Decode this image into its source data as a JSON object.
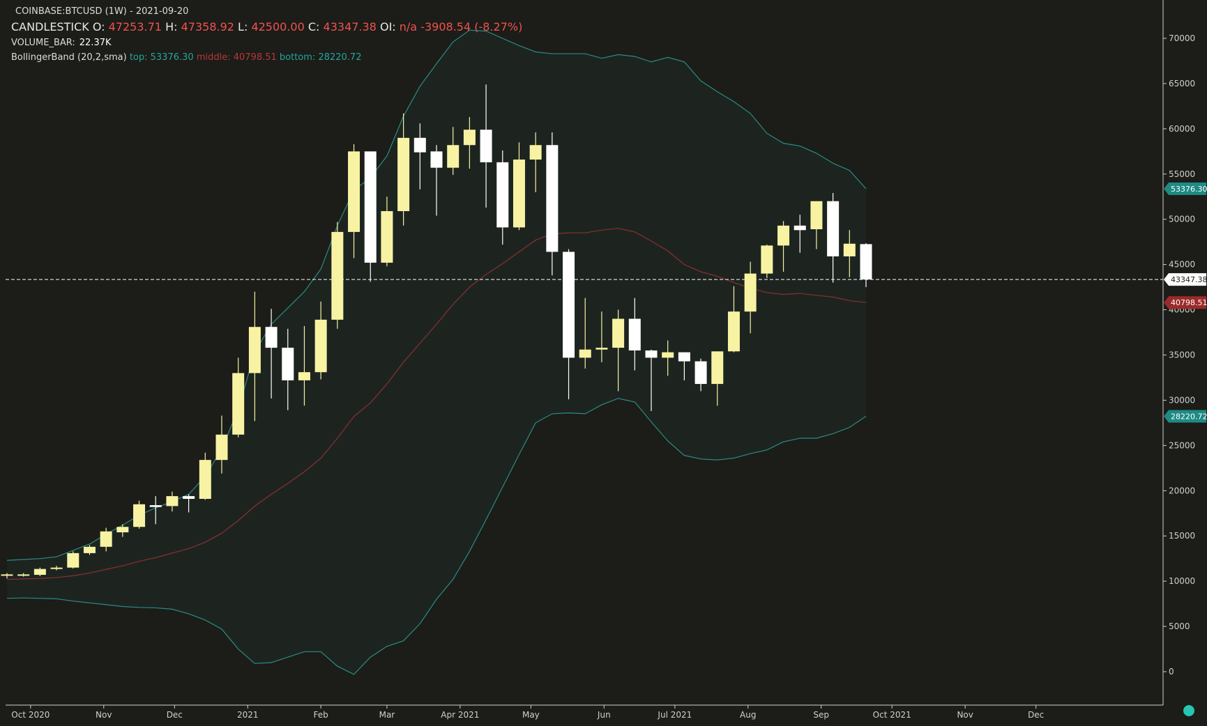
{
  "header": {
    "symbol_line": "COINBASE:BTCUSD (1W) - 2021-09-20",
    "series_label": "CANDLESTICK",
    "o_label": "O:",
    "o_value": "47253.71",
    "h_label": "H:",
    "h_value": "47358.92",
    "l_label": "L:",
    "l_value": "42500.00",
    "c_label": "C:",
    "c_value": "43347.38",
    "oi_label": "OI:",
    "oi_value": "n/a",
    "change_value": "-3908.54",
    "change_pct": "(-8.27%)",
    "volume_label": "VOLUME_BAR:",
    "volume_value": "22.37K",
    "bb_label": "BollingerBand (20,2,sma)",
    "bb_top": "top: 53376.30",
    "bb_middle": "middle: 40798.51",
    "bb_bottom": "bottom: 28220.72"
  },
  "colors": {
    "background": "#1c1c18",
    "up_candle": "#f7f3a3",
    "down_candle": "#ffffff",
    "band_line": "#2a8c86",
    "middle_line": "#8b2f2f",
    "band_fill": "#1d2420",
    "axis_text": "#d0d0d0",
    "crosshair": "#ffffff"
  },
  "chart_data": {
    "type": "candlestick",
    "ylim": [
      -3000,
      75000
    ],
    "y_ticks": [
      0,
      5000,
      10000,
      15000,
      20000,
      25000,
      30000,
      35000,
      40000,
      45000,
      50000,
      55000,
      60000,
      65000,
      70000
    ],
    "x_ticks": [
      "Oct 2020",
      "Nov",
      "Dec",
      "2021",
      "Feb",
      "Mar",
      "Apr 2021",
      "May",
      "Jun",
      "Jul 2021",
      "Aug",
      "Sep",
      "Oct 2021",
      "Nov",
      "Dec"
    ],
    "x_tick_dates": [
      "2020-10-01",
      "2020-11-01",
      "2020-12-01",
      "2021-01-01",
      "2021-02-01",
      "2021-03-01",
      "2021-04-01",
      "2021-05-01",
      "2021-06-01",
      "2021-07-01",
      "2021-08-01",
      "2021-09-01",
      "2021-10-01",
      "2021-11-01",
      "2021-12-01"
    ],
    "x_range_dates": [
      "2020-09-21",
      "2022-01-02"
    ],
    "price_labels": {
      "top": "53376.30",
      "last": "43347.38",
      "middle": "40798.51",
      "bottom": "28220.72"
    },
    "last_price": 43347.38,
    "candles": [
      {
        "date": "2020-09-21",
        "o": 10700,
        "h": 10900,
        "l": 10300,
        "c": 10750
      },
      {
        "date": "2020-09-28",
        "o": 10650,
        "h": 10900,
        "l": 10500,
        "c": 10750
      },
      {
        "date": "2020-10-05",
        "o": 10700,
        "h": 11500,
        "l": 10550,
        "c": 11350
      },
      {
        "date": "2020-10-12",
        "o": 11350,
        "h": 11700,
        "l": 11200,
        "c": 11500
      },
      {
        "date": "2020-10-19",
        "o": 11500,
        "h": 13300,
        "l": 11400,
        "c": 13100
      },
      {
        "date": "2020-10-26",
        "o": 13100,
        "h": 14000,
        "l": 12900,
        "c": 13800
      },
      {
        "date": "2020-11-02",
        "o": 13800,
        "h": 15900,
        "l": 13300,
        "c": 15500
      },
      {
        "date": "2020-11-09",
        "o": 15400,
        "h": 16300,
        "l": 14900,
        "c": 16000
      },
      {
        "date": "2020-11-16",
        "o": 16000,
        "h": 18900,
        "l": 15800,
        "c": 18500
      },
      {
        "date": "2020-11-23",
        "o": 18400,
        "h": 19400,
        "l": 16300,
        "c": 18200
      },
      {
        "date": "2020-11-30",
        "o": 18300,
        "h": 19900,
        "l": 17700,
        "c": 19400
      },
      {
        "date": "2020-12-07",
        "o": 19400,
        "h": 19600,
        "l": 17600,
        "c": 19100
      },
      {
        "date": "2020-12-14",
        "o": 19100,
        "h": 24200,
        "l": 19000,
        "c": 23400
      },
      {
        "date": "2020-12-21",
        "o": 23400,
        "h": 28300,
        "l": 21900,
        "c": 26200
      },
      {
        "date": "2020-12-28",
        "o": 26200,
        "h": 34700,
        "l": 25900,
        "c": 33000
      },
      {
        "date": "2021-01-04",
        "o": 33000,
        "h": 42000,
        "l": 27700,
        "c": 38100
      },
      {
        "date": "2021-01-11",
        "o": 38100,
        "h": 40100,
        "l": 30200,
        "c": 35800
      },
      {
        "date": "2021-01-18",
        "o": 35800,
        "h": 37900,
        "l": 28900,
        "c": 32200
      },
      {
        "date": "2021-01-25",
        "o": 32200,
        "h": 38200,
        "l": 29400,
        "c": 33100
      },
      {
        "date": "2021-02-01",
        "o": 33100,
        "h": 40900,
        "l": 32300,
        "c": 38900
      },
      {
        "date": "2021-02-08",
        "o": 38900,
        "h": 49700,
        "l": 37900,
        "c": 48600
      },
      {
        "date": "2021-02-15",
        "o": 48600,
        "h": 58300,
        "l": 45700,
        "c": 57500
      },
      {
        "date": "2021-02-22",
        "o": 57500,
        "h": 57500,
        "l": 43100,
        "c": 45200
      },
      {
        "date": "2021-03-01",
        "o": 45200,
        "h": 52500,
        "l": 44800,
        "c": 50900
      },
      {
        "date": "2021-03-08",
        "o": 50900,
        "h": 61700,
        "l": 49300,
        "c": 59000
      },
      {
        "date": "2021-03-15",
        "o": 59000,
        "h": 60600,
        "l": 53300,
        "c": 57400
      },
      {
        "date": "2021-03-22",
        "o": 57500,
        "h": 58200,
        "l": 50400,
        "c": 55700
      },
      {
        "date": "2021-03-29",
        "o": 55700,
        "h": 60200,
        "l": 54900,
        "c": 58200
      },
      {
        "date": "2021-04-05",
        "o": 58200,
        "h": 61300,
        "l": 55600,
        "c": 59900
      },
      {
        "date": "2021-04-12",
        "o": 59900,
        "h": 64900,
        "l": 51300,
        "c": 56300
      },
      {
        "date": "2021-04-19",
        "o": 56300,
        "h": 57600,
        "l": 47200,
        "c": 49100
      },
      {
        "date": "2021-04-26",
        "o": 49100,
        "h": 58500,
        "l": 48800,
        "c": 56600
      },
      {
        "date": "2021-05-03",
        "o": 56600,
        "h": 59600,
        "l": 53000,
        "c": 58200
      },
      {
        "date": "2021-05-10",
        "o": 58200,
        "h": 59600,
        "l": 43800,
        "c": 46400
      },
      {
        "date": "2021-05-17",
        "o": 46400,
        "h": 46700,
        "l": 30100,
        "c": 34700
      },
      {
        "date": "2021-05-24",
        "o": 34700,
        "h": 41300,
        "l": 33500,
        "c": 35600
      },
      {
        "date": "2021-05-31",
        "o": 35600,
        "h": 39800,
        "l": 34200,
        "c": 35800
      },
      {
        "date": "2021-06-07",
        "o": 35800,
        "h": 40000,
        "l": 31000,
        "c": 39000
      },
      {
        "date": "2021-06-14",
        "o": 39000,
        "h": 41300,
        "l": 33300,
        "c": 35500
      },
      {
        "date": "2021-06-21",
        "o": 35500,
        "h": 35600,
        "l": 28800,
        "c": 34700
      },
      {
        "date": "2021-06-28",
        "o": 34700,
        "h": 36600,
        "l": 32700,
        "c": 35300
      },
      {
        "date": "2021-07-05",
        "o": 35300,
        "h": 35300,
        "l": 32200,
        "c": 34300
      },
      {
        "date": "2021-07-12",
        "o": 34300,
        "h": 34600,
        "l": 31000,
        "c": 31800
      },
      {
        "date": "2021-07-19",
        "o": 31800,
        "h": 35400,
        "l": 29400,
        "c": 35400
      },
      {
        "date": "2021-07-26",
        "o": 35400,
        "h": 42600,
        "l": 35300,
        "c": 39800
      },
      {
        "date": "2021-08-02",
        "o": 39800,
        "h": 45300,
        "l": 37400,
        "c": 44000
      },
      {
        "date": "2021-08-09",
        "o": 44000,
        "h": 47200,
        "l": 43500,
        "c": 47100
      },
      {
        "date": "2021-08-16",
        "o": 47100,
        "h": 49800,
        "l": 44200,
        "c": 49300
      },
      {
        "date": "2021-08-23",
        "o": 49300,
        "h": 50500,
        "l": 46300,
        "c": 48800
      },
      {
        "date": "2021-08-30",
        "o": 48900,
        "h": 52000,
        "l": 46700,
        "c": 52000
      },
      {
        "date": "2021-09-06",
        "o": 52000,
        "h": 52900,
        "l": 43000,
        "c": 45900
      },
      {
        "date": "2021-09-13",
        "o": 45900,
        "h": 48800,
        "l": 43600,
        "c": 47300
      },
      {
        "date": "2021-09-20",
        "o": 47253.71,
        "h": 47358.92,
        "l": 42500.0,
        "c": 43347.38
      }
    ],
    "bollinger": [
      {
        "date": "2020-09-21",
        "top": 12300,
        "mid": 10200,
        "bot": 8100
      },
      {
        "date": "2020-09-28",
        "top": 12400,
        "mid": 10250,
        "bot": 8150
      },
      {
        "date": "2020-10-05",
        "top": 12500,
        "mid": 10300,
        "bot": 8100
      },
      {
        "date": "2020-10-12",
        "top": 12700,
        "mid": 10400,
        "bot": 8050
      },
      {
        "date": "2020-10-19",
        "top": 13400,
        "mid": 10600,
        "bot": 7800
      },
      {
        "date": "2020-10-26",
        "top": 14100,
        "mid": 10900,
        "bot": 7600
      },
      {
        "date": "2020-11-02",
        "top": 15200,
        "mid": 11300,
        "bot": 7400
      },
      {
        "date": "2020-11-09",
        "top": 16200,
        "mid": 11700,
        "bot": 7200
      },
      {
        "date": "2020-11-16",
        "top": 17300,
        "mid": 12200,
        "bot": 7100
      },
      {
        "date": "2020-11-23",
        "top": 18100,
        "mid": 12600,
        "bot": 7050
      },
      {
        "date": "2020-11-30",
        "top": 18800,
        "mid": 13100,
        "bot": 6900
      },
      {
        "date": "2020-12-07",
        "top": 19600,
        "mid": 13600,
        "bot": 6400
      },
      {
        "date": "2020-12-14",
        "top": 21600,
        "mid": 14300,
        "bot": 5700
      },
      {
        "date": "2020-12-21",
        "top": 24600,
        "mid": 15300,
        "bot": 4700
      },
      {
        "date": "2020-12-28",
        "top": 29000,
        "mid": 16700,
        "bot": 2500
      },
      {
        "date": "2021-01-04",
        "top": 35300,
        "mid": 18300,
        "bot": 900
      },
      {
        "date": "2021-01-11",
        "top": 38400,
        "mid": 19600,
        "bot": 1000
      },
      {
        "date": "2021-01-18",
        "top": 40200,
        "mid": 20800,
        "bot": 1600
      },
      {
        "date": "2021-01-25",
        "top": 42000,
        "mid": 22100,
        "bot": 2200
      },
      {
        "date": "2021-02-01",
        "top": 44500,
        "mid": 23600,
        "bot": 2200
      },
      {
        "date": "2021-02-08",
        "top": 49300,
        "mid": 25800,
        "bot": 600
      },
      {
        "date": "2021-02-15",
        "top": 53200,
        "mid": 28200,
        "bot": -300
      },
      {
        "date": "2021-02-22",
        "top": 54600,
        "mid": 29700,
        "bot": 1600
      },
      {
        "date": "2021-03-01",
        "top": 57000,
        "mid": 31800,
        "bot": 2800
      },
      {
        "date": "2021-03-08",
        "top": 61400,
        "mid": 34200,
        "bot": 3400
      },
      {
        "date": "2021-03-15",
        "top": 64700,
        "mid": 36300,
        "bot": 5300
      },
      {
        "date": "2021-03-22",
        "top": 67200,
        "mid": 38400,
        "bot": 8000
      },
      {
        "date": "2021-03-29",
        "top": 69600,
        "mid": 40600,
        "bot": 10200
      },
      {
        "date": "2021-04-05",
        "top": 70900,
        "mid": 42500,
        "bot": 13300
      },
      {
        "date": "2021-04-12",
        "top": 70800,
        "mid": 43900,
        "bot": 16800
      },
      {
        "date": "2021-04-19",
        "top": 70000,
        "mid": 45100,
        "bot": 20400
      },
      {
        "date": "2021-04-26",
        "top": 69200,
        "mid": 46400,
        "bot": 24000
      },
      {
        "date": "2021-05-03",
        "top": 68500,
        "mid": 47700,
        "bot": 27500
      },
      {
        "date": "2021-05-10",
        "top": 68300,
        "mid": 48400,
        "bot": 28500
      },
      {
        "date": "2021-05-17",
        "top": 68300,
        "mid": 48500,
        "bot": 28600
      },
      {
        "date": "2021-05-24",
        "top": 68300,
        "mid": 48500,
        "bot": 28500
      },
      {
        "date": "2021-05-31",
        "top": 67800,
        "mid": 48800,
        "bot": 29500
      },
      {
        "date": "2021-06-07",
        "top": 68200,
        "mid": 49000,
        "bot": 30200
      },
      {
        "date": "2021-06-14",
        "top": 68000,
        "mid": 48600,
        "bot": 29800
      },
      {
        "date": "2021-06-21",
        "top": 67400,
        "mid": 47600,
        "bot": 27600
      },
      {
        "date": "2021-06-28",
        "top": 67900,
        "mid": 46500,
        "bot": 25500
      },
      {
        "date": "2021-07-05",
        "top": 67400,
        "mid": 45000,
        "bot": 23900
      },
      {
        "date": "2021-07-12",
        "top": 65300,
        "mid": 44200,
        "bot": 23500
      },
      {
        "date": "2021-07-19",
        "top": 64100,
        "mid": 43700,
        "bot": 23400
      },
      {
        "date": "2021-07-26",
        "top": 63000,
        "mid": 43000,
        "bot": 23600
      },
      {
        "date": "2021-08-02",
        "top": 61700,
        "mid": 42400,
        "bot": 24100
      },
      {
        "date": "2021-08-09",
        "top": 59500,
        "mid": 41900,
        "bot": 24500
      },
      {
        "date": "2021-08-16",
        "top": 58400,
        "mid": 41700,
        "bot": 25400
      },
      {
        "date": "2021-08-23",
        "top": 58100,
        "mid": 41800,
        "bot": 25800
      },
      {
        "date": "2021-08-30",
        "top": 57300,
        "mid": 41600,
        "bot": 25800
      },
      {
        "date": "2021-09-06",
        "top": 56200,
        "mid": 41400,
        "bot": 26300
      },
      {
        "date": "2021-09-13",
        "top": 55400,
        "mid": 41000,
        "bot": 27000
      },
      {
        "date": "2021-09-20",
        "top": 53376.3,
        "mid": 40798.51,
        "bot": 28220.72
      }
    ]
  }
}
